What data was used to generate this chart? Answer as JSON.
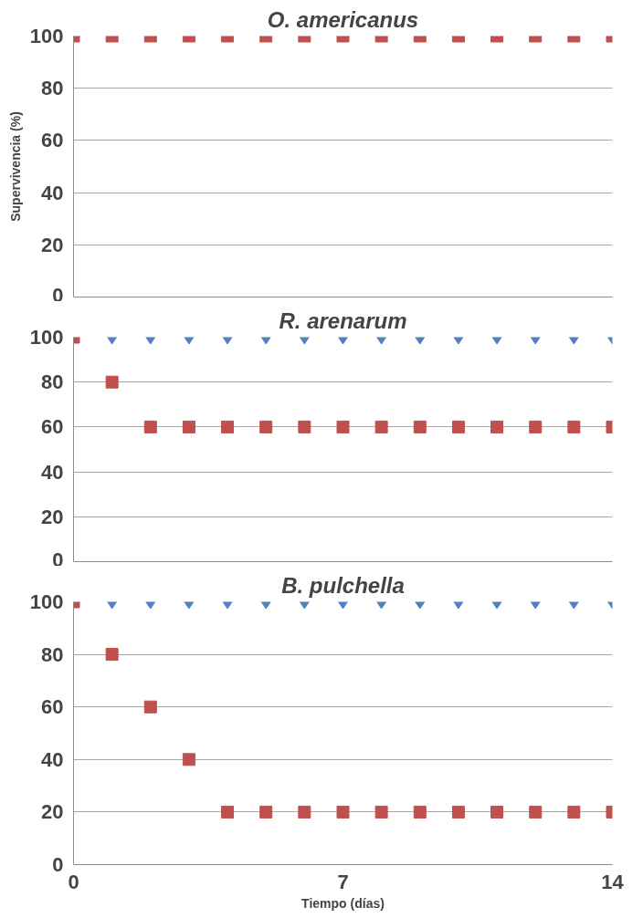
{
  "chart_data": [
    {
      "type": "scatter",
      "title": "O. americanus",
      "ylabel": "Supervivencia (%)",
      "x": [
        0,
        1,
        2,
        3,
        4,
        5,
        6,
        7,
        8,
        9,
        10,
        11,
        12,
        13,
        14
      ],
      "xlim": [
        0,
        14
      ],
      "ylim": [
        0,
        100
      ],
      "yticks": [
        0,
        20,
        40,
        60,
        80,
        100
      ],
      "grid": "y",
      "tick_labels": "y",
      "series": [
        {
          "color": "#c0504d",
          "marker": "square",
          "values": [
            100,
            100,
            100,
            100,
            100,
            100,
            100,
            100,
            100,
            100,
            100,
            100,
            100,
            100,
            100
          ]
        }
      ]
    },
    {
      "type": "scatter",
      "title": "R. arenarum",
      "x": [
        0,
        1,
        2,
        3,
        4,
        5,
        6,
        7,
        8,
        9,
        10,
        11,
        12,
        13,
        14
      ],
      "xlim": [
        0,
        14
      ],
      "ylim": [
        0,
        100
      ],
      "yticks": [
        0,
        20,
        40,
        60,
        80,
        100
      ],
      "grid": "y",
      "tick_labels": "y",
      "series": [
        {
          "color": "#4f81bd",
          "marker": "diamond",
          "values": [
            null,
            100,
            100,
            100,
            100,
            100,
            100,
            100,
            100,
            100,
            100,
            100,
            100,
            100,
            100
          ]
        },
        {
          "color": "#c0504d",
          "marker": "square",
          "values": [
            100,
            80,
            60,
            60,
            60,
            60,
            60,
            60,
            60,
            60,
            60,
            60,
            60,
            60,
            60
          ]
        }
      ]
    },
    {
      "type": "scatter",
      "title": "B. pulchella",
      "xlabel": "Tiempo (días)",
      "x": [
        0,
        1,
        2,
        3,
        4,
        5,
        6,
        7,
        8,
        9,
        10,
        11,
        12,
        13,
        14
      ],
      "xlim": [
        0,
        14
      ],
      "xticks": [
        0,
        7,
        14
      ],
      "ylim": [
        0,
        100
      ],
      "yticks": [
        0,
        20,
        40,
        60,
        80,
        100
      ],
      "grid": "y",
      "series": [
        {
          "color": "#4f81bd",
          "marker": "diamond",
          "values": [
            null,
            100,
            100,
            100,
            100,
            100,
            100,
            100,
            100,
            100,
            100,
            100,
            100,
            100,
            100
          ]
        },
        {
          "color": "#c0504d",
          "marker": "square",
          "values": [
            100,
            80,
            60,
            40,
            20,
            20,
            20,
            20,
            20,
            20,
            20,
            20,
            20,
            20,
            20
          ]
        }
      ]
    }
  ]
}
